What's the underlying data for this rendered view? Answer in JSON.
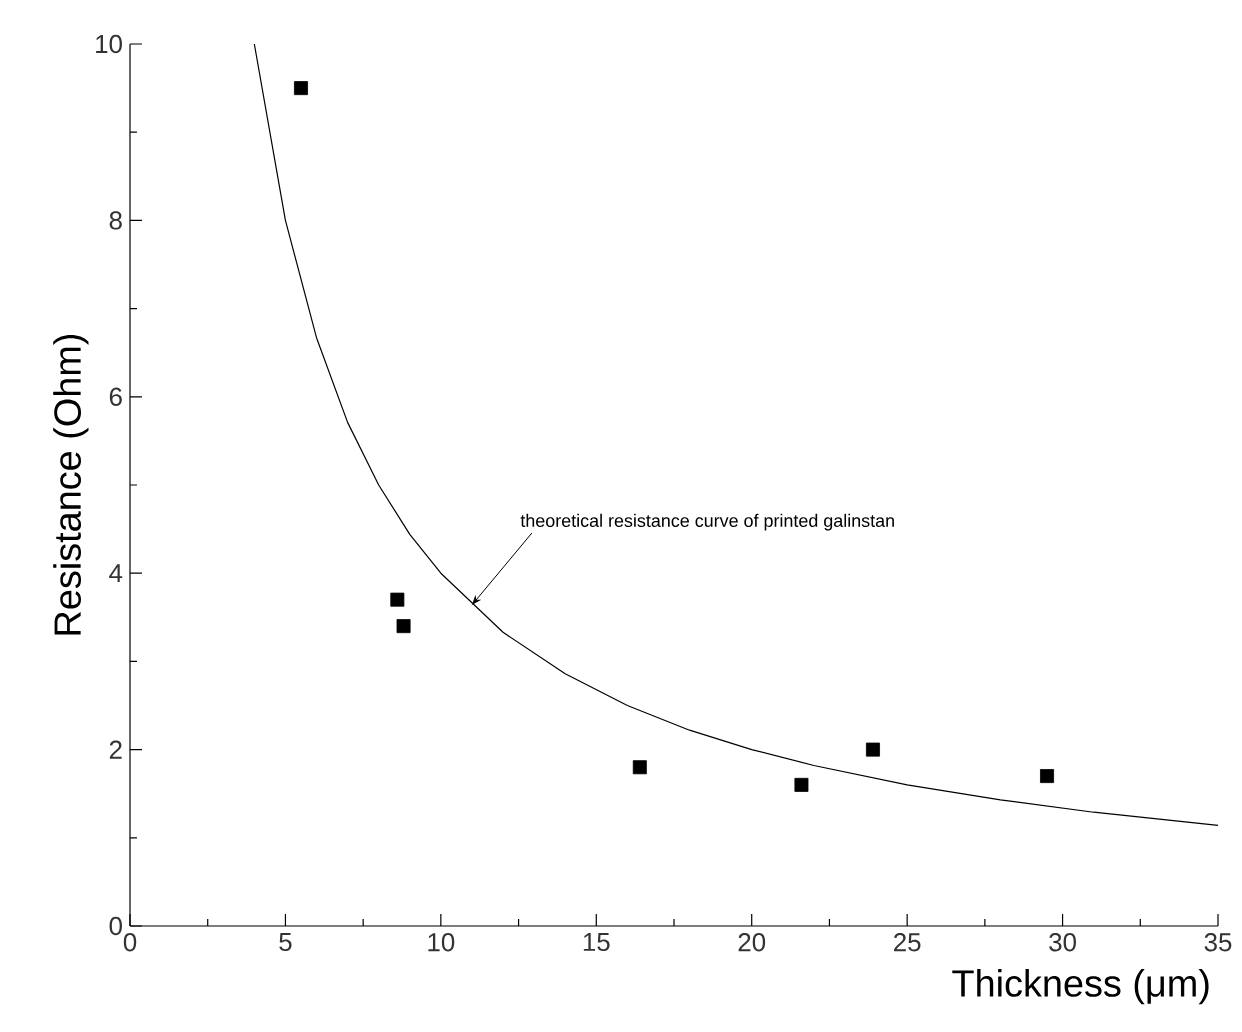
{
  "chart_data": {
    "type": "scatter",
    "xlabel": "Thickness (μm)",
    "ylabel": "Resistance (Ohm)",
    "xlim": [
      0,
      35
    ],
    "ylim": [
      0,
      10
    ],
    "xticks": [
      0,
      5,
      10,
      15,
      20,
      25,
      30,
      35
    ],
    "yticks": [
      0,
      2,
      4,
      6,
      8,
      10
    ],
    "marker": "square",
    "series": [
      {
        "color": "#000000",
        "x": [
          5.5,
          8.6,
          8.8,
          16.4,
          21.6,
          23.9,
          29.5
        ],
        "values": [
          9.5,
          3.7,
          3.4,
          1.8,
          1.6,
          2.0,
          1.7
        ]
      },
      {
        "type": "line",
        "color": "#000000",
        "marker": "none",
        "line_style": "solid",
        "x": [
          4,
          5,
          6,
          7,
          8,
          9,
          10,
          12,
          14,
          16,
          18,
          20,
          22,
          25,
          28,
          31,
          35
        ],
        "values": [
          10,
          8,
          6.67,
          5.71,
          5,
          4.44,
          4,
          3.33,
          2.86,
          2.5,
          2.22,
          2,
          1.82,
          1.6,
          1.43,
          1.29,
          1.14
        ]
      }
    ],
    "annotations": [
      {
        "text": "theoretical resistance curve of printed galinstan",
        "x": 11,
        "y": 3.64
      }
    ]
  }
}
